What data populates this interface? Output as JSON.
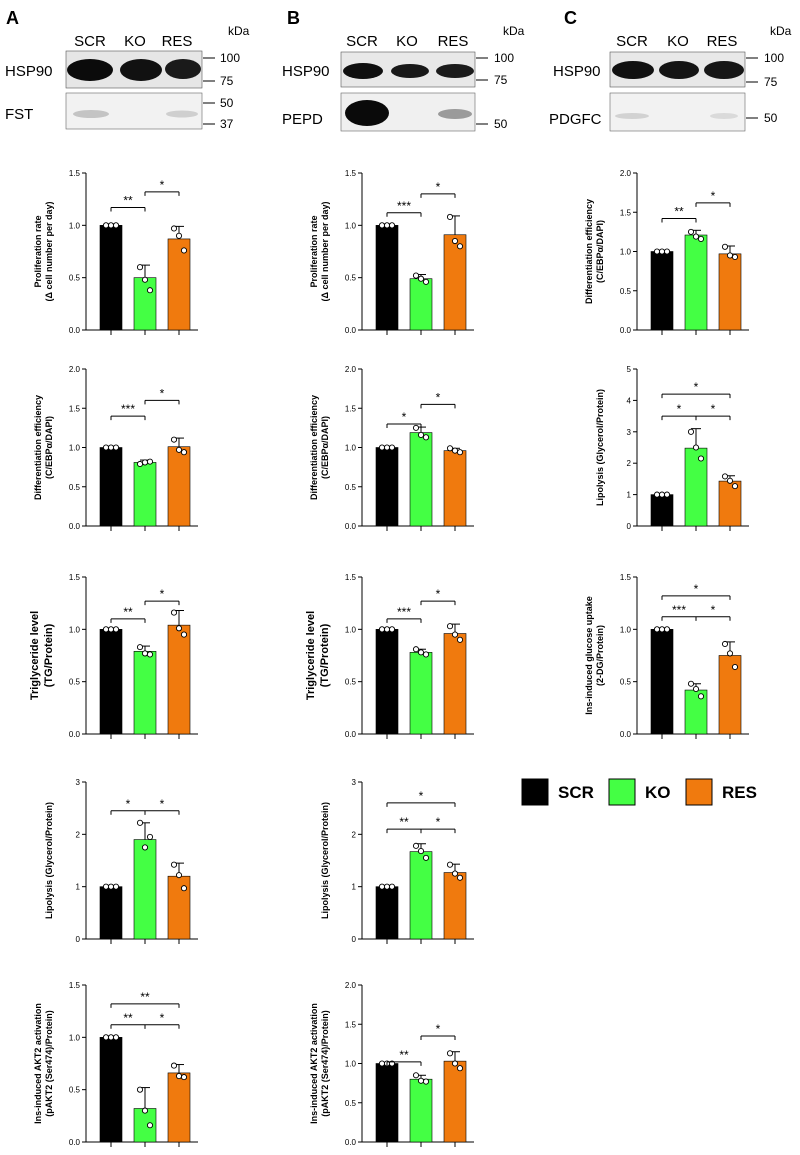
{
  "figure": {
    "panels": [
      {
        "letter": "A",
        "lanes": [
          "SCR",
          "KO",
          "RES"
        ],
        "kda_label": "kDa",
        "blot_labels": [
          "HSP90",
          "FST"
        ],
        "marker_labels": [
          "100",
          "75",
          "50",
          "37"
        ]
      },
      {
        "letter": "B",
        "lanes": [
          "SCR",
          "KO",
          "RES"
        ],
        "kda_label": "kDa",
        "blot_labels": [
          "HSP90",
          "PEPD"
        ],
        "marker_labels": [
          "100",
          "75",
          "50"
        ]
      },
      {
        "letter": "C",
        "lanes": [
          "SCR",
          "KO",
          "RES"
        ],
        "kda_label": "kDa",
        "blot_labels": [
          "HSP90",
          "PDGFC"
        ],
        "marker_labels": [
          "100",
          "75",
          "50"
        ]
      }
    ],
    "legend": [
      {
        "label": "SCR",
        "color": "#000000"
      },
      {
        "label": "KO",
        "color": "#44ff44"
      },
      {
        "label": "RES",
        "color": "#f07a0e"
      }
    ]
  },
  "chart_data": [
    {
      "type": "bar",
      "panel": "A",
      "ylabel": [
        "Proliferation rate",
        "(Δ cell number per day)"
      ],
      "categories": [
        "SCR",
        "KO",
        "RES"
      ],
      "values": [
        1.0,
        0.5,
        0.87
      ],
      "errors": [
        0.0,
        0.12,
        0.12
      ],
      "points": [
        [
          1.0,
          1.0,
          1.0
        ],
        [
          0.6,
          0.48,
          0.38
        ],
        [
          0.97,
          0.9,
          0.76
        ]
      ],
      "ylim": [
        0,
        1.5
      ],
      "yticks": [
        "0.0",
        "0.5",
        "1.0",
        "1.5"
      ],
      "significance": [
        {
          "from": 0,
          "to": 1,
          "label": "**",
          "level": 1.17
        },
        {
          "from": 1,
          "to": 2,
          "label": "*",
          "level": 1.32
        }
      ]
    },
    {
      "type": "bar",
      "panel": "A",
      "ylabel": [
        "Differentiation efficiency",
        "(C/EBPα/DAPI)"
      ],
      "categories": [
        "SCR",
        "KO",
        "RES"
      ],
      "values": [
        1.0,
        0.81,
        1.01
      ],
      "errors": [
        0.0,
        0.03,
        0.11
      ],
      "points": [
        [
          1.0,
          1.0,
          1.0
        ],
        [
          0.79,
          0.81,
          0.82
        ],
        [
          1.1,
          0.97,
          0.94
        ]
      ],
      "ylim": [
        0,
        2.0
      ],
      "yticks": [
        "0.0",
        "0.5",
        "1.0",
        "1.5",
        "2.0"
      ],
      "significance": [
        {
          "from": 0,
          "to": 1,
          "label": "***",
          "level": 1.4
        },
        {
          "from": 1,
          "to": 2,
          "label": "*",
          "level": 1.6
        }
      ]
    },
    {
      "type": "bar",
      "panel": "A",
      "ylabel": [
        "Triglyceride level",
        "(TG/Protein)"
      ],
      "big_label": true,
      "categories": [
        "SCR",
        "KO",
        "RES"
      ],
      "values": [
        1.0,
        0.79,
        1.04
      ],
      "errors": [
        0.0,
        0.05,
        0.14
      ],
      "points": [
        [
          1.0,
          1.0,
          1.0
        ],
        [
          0.83,
          0.77,
          0.76
        ],
        [
          1.16,
          1.01,
          0.95
        ]
      ],
      "ylim": [
        0,
        1.5
      ],
      "yticks": [
        "0.0",
        "0.5",
        "1.0",
        "1.5"
      ],
      "significance": [
        {
          "from": 0,
          "to": 1,
          "label": "**",
          "level": 1.1
        },
        {
          "from": 1,
          "to": 2,
          "label": "*",
          "level": 1.27
        }
      ]
    },
    {
      "type": "bar",
      "panel": "A",
      "ylabel": [
        "Lipolysis (Glycerol/Protein)"
      ],
      "categories": [
        "SCR",
        "KO",
        "RES"
      ],
      "values": [
        1.0,
        1.9,
        1.2
      ],
      "errors": [
        0.0,
        0.32,
        0.25
      ],
      "points": [
        [
          1.0,
          1.0,
          1.0
        ],
        [
          2.22,
          1.75,
          1.95
        ],
        [
          1.42,
          1.22,
          0.97
        ]
      ],
      "ylim": [
        0,
        3
      ],
      "yticks": [
        "0",
        "1",
        "2",
        "3"
      ],
      "significance": [
        {
          "from": 0,
          "to": 1,
          "label": "*",
          "level": 2.45
        },
        {
          "from": 1,
          "to": 2,
          "label": "*",
          "level": 2.45
        }
      ]
    },
    {
      "type": "bar",
      "panel": "A",
      "ylabel": [
        "Ins-induced AKT2 activation",
        "(pAKT2 (Ser474)/Protein)"
      ],
      "categories": [
        "SCR",
        "KO",
        "RES"
      ],
      "values": [
        1.0,
        0.32,
        0.66
      ],
      "errors": [
        0.0,
        0.2,
        0.08
      ],
      "points": [
        [
          1.0,
          1.0,
          1.0
        ],
        [
          0.5,
          0.3,
          0.16
        ],
        [
          0.73,
          0.63,
          0.62
        ]
      ],
      "ylim": [
        0,
        1.5
      ],
      "yticks": [
        "0.0",
        "0.5",
        "1.0",
        "1.5"
      ],
      "significance": [
        {
          "from": 0,
          "to": 1,
          "label": "**",
          "level": 1.12
        },
        {
          "from": 1,
          "to": 2,
          "label": "*",
          "level": 1.12
        },
        {
          "from": 0,
          "to": 2,
          "label": "**",
          "level": 1.32
        }
      ]
    },
    {
      "type": "bar",
      "panel": "B",
      "ylabel": [
        "Proliferation rate",
        "(Δ cell number per day)"
      ],
      "categories": [
        "SCR",
        "KO",
        "RES"
      ],
      "values": [
        1.0,
        0.49,
        0.91
      ],
      "errors": [
        0.0,
        0.04,
        0.18
      ],
      "points": [
        [
          1.0,
          1.0,
          1.0
        ],
        [
          0.52,
          0.49,
          0.46
        ],
        [
          1.08,
          0.85,
          0.8
        ]
      ],
      "ylim": [
        0,
        1.5
      ],
      "yticks": [
        "0.0",
        "0.5",
        "1.0",
        "1.5"
      ],
      "significance": [
        {
          "from": 0,
          "to": 1,
          "label": "***",
          "level": 1.12
        },
        {
          "from": 1,
          "to": 2,
          "label": "*",
          "level": 1.3
        }
      ]
    },
    {
      "type": "bar",
      "panel": "B",
      "ylabel": [
        "Differentiation efficiency",
        "(C/EBPα/DAPI)"
      ],
      "categories": [
        "SCR",
        "KO",
        "RES"
      ],
      "values": [
        1.0,
        1.19,
        0.96
      ],
      "errors": [
        0.0,
        0.07,
        0.03
      ],
      "points": [
        [
          1.0,
          1.0,
          1.0
        ],
        [
          1.25,
          1.16,
          1.13
        ],
        [
          0.99,
          0.96,
          0.94
        ]
      ],
      "ylim": [
        0,
        2.0
      ],
      "yticks": [
        "0.0",
        "0.5",
        "1.0",
        "1.5",
        "2.0"
      ],
      "significance": [
        {
          "from": 0,
          "to": 1,
          "label": "*",
          "level": 1.3
        },
        {
          "from": 1,
          "to": 2,
          "label": "*",
          "level": 1.55
        }
      ]
    },
    {
      "type": "bar",
      "panel": "B",
      "ylabel": [
        "Triglyceride level",
        "(TG/Protein)"
      ],
      "big_label": true,
      "categories": [
        "SCR",
        "KO",
        "RES"
      ],
      "values": [
        1.0,
        0.78,
        0.96
      ],
      "errors": [
        0.0,
        0.03,
        0.09
      ],
      "points": [
        [
          1.0,
          1.0,
          1.0
        ],
        [
          0.81,
          0.78,
          0.76
        ],
        [
          1.03,
          0.95,
          0.9
        ]
      ],
      "ylim": [
        0,
        1.5
      ],
      "yticks": [
        "0.0",
        "0.5",
        "1.0",
        "1.5"
      ],
      "significance": [
        {
          "from": 0,
          "to": 1,
          "label": "***",
          "level": 1.1
        },
        {
          "from": 1,
          "to": 2,
          "label": "*",
          "level": 1.27
        }
      ]
    },
    {
      "type": "bar",
      "panel": "B",
      "ylabel": [
        "Lipolysis (Glycerol/Protein)"
      ],
      "categories": [
        "SCR",
        "KO",
        "RES"
      ],
      "values": [
        1.0,
        1.67,
        1.27
      ],
      "errors": [
        0.0,
        0.15,
        0.16
      ],
      "points": [
        [
          1.0,
          1.0,
          1.0
        ],
        [
          1.78,
          1.68,
          1.55
        ],
        [
          1.42,
          1.25,
          1.17
        ]
      ],
      "ylim": [
        0,
        3
      ],
      "yticks": [
        "0",
        "1",
        "2",
        "3"
      ],
      "significance": [
        {
          "from": 0,
          "to": 1,
          "label": "**",
          "level": 2.1
        },
        {
          "from": 1,
          "to": 2,
          "label": "*",
          "level": 2.1
        },
        {
          "from": 0,
          "to": 2,
          "label": "*",
          "level": 2.6
        }
      ]
    },
    {
      "type": "bar",
      "panel": "B",
      "ylabel": [
        "Ins-induced AKT2 activation",
        "(pAKT2 (Ser474)/Protein)"
      ],
      "categories": [
        "SCR",
        "KO",
        "RES"
      ],
      "values": [
        1.0,
        0.8,
        1.03
      ],
      "errors": [
        0.0,
        0.05,
        0.12
      ],
      "points": [
        [
          1.0,
          1.0,
          1.0
        ],
        [
          0.85,
          0.78,
          0.77
        ],
        [
          1.13,
          1.0,
          0.94
        ]
      ],
      "ylim": [
        0,
        2.0
      ],
      "yticks": [
        "0.0",
        "0.5",
        "1.0",
        "1.5",
        "2.0"
      ],
      "significance": [
        {
          "from": 0,
          "to": 1,
          "label": "**",
          "level": 1.02
        },
        {
          "from": 1,
          "to": 2,
          "label": "*",
          "level": 1.35
        }
      ]
    },
    {
      "type": "bar",
      "panel": "C",
      "ylabel": [
        "Differentiation efficiency",
        "(C/EBPα/DAPI)"
      ],
      "categories": [
        "SCR",
        "KO",
        "RES"
      ],
      "values": [
        1.0,
        1.21,
        0.97
      ],
      "errors": [
        0.0,
        0.06,
        0.1
      ],
      "points": [
        [
          1.0,
          1.0,
          1.0
        ],
        [
          1.25,
          1.19,
          1.16
        ],
        [
          1.06,
          0.95,
          0.93
        ]
      ],
      "ylim": [
        0,
        2.0
      ],
      "yticks": [
        "0.0",
        "0.5",
        "1.0",
        "1.5",
        "2.0"
      ],
      "significance": [
        {
          "from": 0,
          "to": 1,
          "label": "**",
          "level": 1.42
        },
        {
          "from": 1,
          "to": 2,
          "label": "*",
          "level": 1.62
        }
      ]
    },
    {
      "type": "bar",
      "panel": "C",
      "ylabel": [
        "Lipolysis (Glycerol/Protein)"
      ],
      "categories": [
        "SCR",
        "KO",
        "RES"
      ],
      "values": [
        1.0,
        2.48,
        1.43
      ],
      "errors": [
        0.0,
        0.62,
        0.17
      ],
      "points": [
        [
          1.0,
          1.0,
          1.0
        ],
        [
          3.0,
          2.5,
          2.15
        ],
        [
          1.58,
          1.44,
          1.27
        ]
      ],
      "ylim": [
        0,
        5
      ],
      "yticks": [
        "0",
        "1",
        "2",
        "3",
        "4",
        "5"
      ],
      "significance": [
        {
          "from": 0,
          "to": 1,
          "label": "*",
          "level": 3.5
        },
        {
          "from": 1,
          "to": 2,
          "label": "*",
          "level": 3.5
        },
        {
          "from": 0,
          "to": 2,
          "label": "*",
          "level": 4.2
        }
      ]
    },
    {
      "type": "bar",
      "panel": "C",
      "ylabel": [
        "Ins-induced glucose uptake",
        "(2-DG/Protein)"
      ],
      "categories": [
        "SCR",
        "KO",
        "RES"
      ],
      "values": [
        1.0,
        0.42,
        0.75
      ],
      "errors": [
        0.0,
        0.06,
        0.13
      ],
      "points": [
        [
          1.0,
          1.0,
          1.0
        ],
        [
          0.48,
          0.43,
          0.36
        ],
        [
          0.86,
          0.77,
          0.64
        ]
      ],
      "ylim": [
        0,
        1.5
      ],
      "yticks": [
        "0.0",
        "0.5",
        "1.0",
        "1.5"
      ],
      "significance": [
        {
          "from": 0,
          "to": 1,
          "label": "***",
          "level": 1.12
        },
        {
          "from": 1,
          "to": 2,
          "label": "*",
          "level": 1.12
        },
        {
          "from": 0,
          "to": 2,
          "label": "*",
          "level": 1.32
        }
      ]
    }
  ]
}
